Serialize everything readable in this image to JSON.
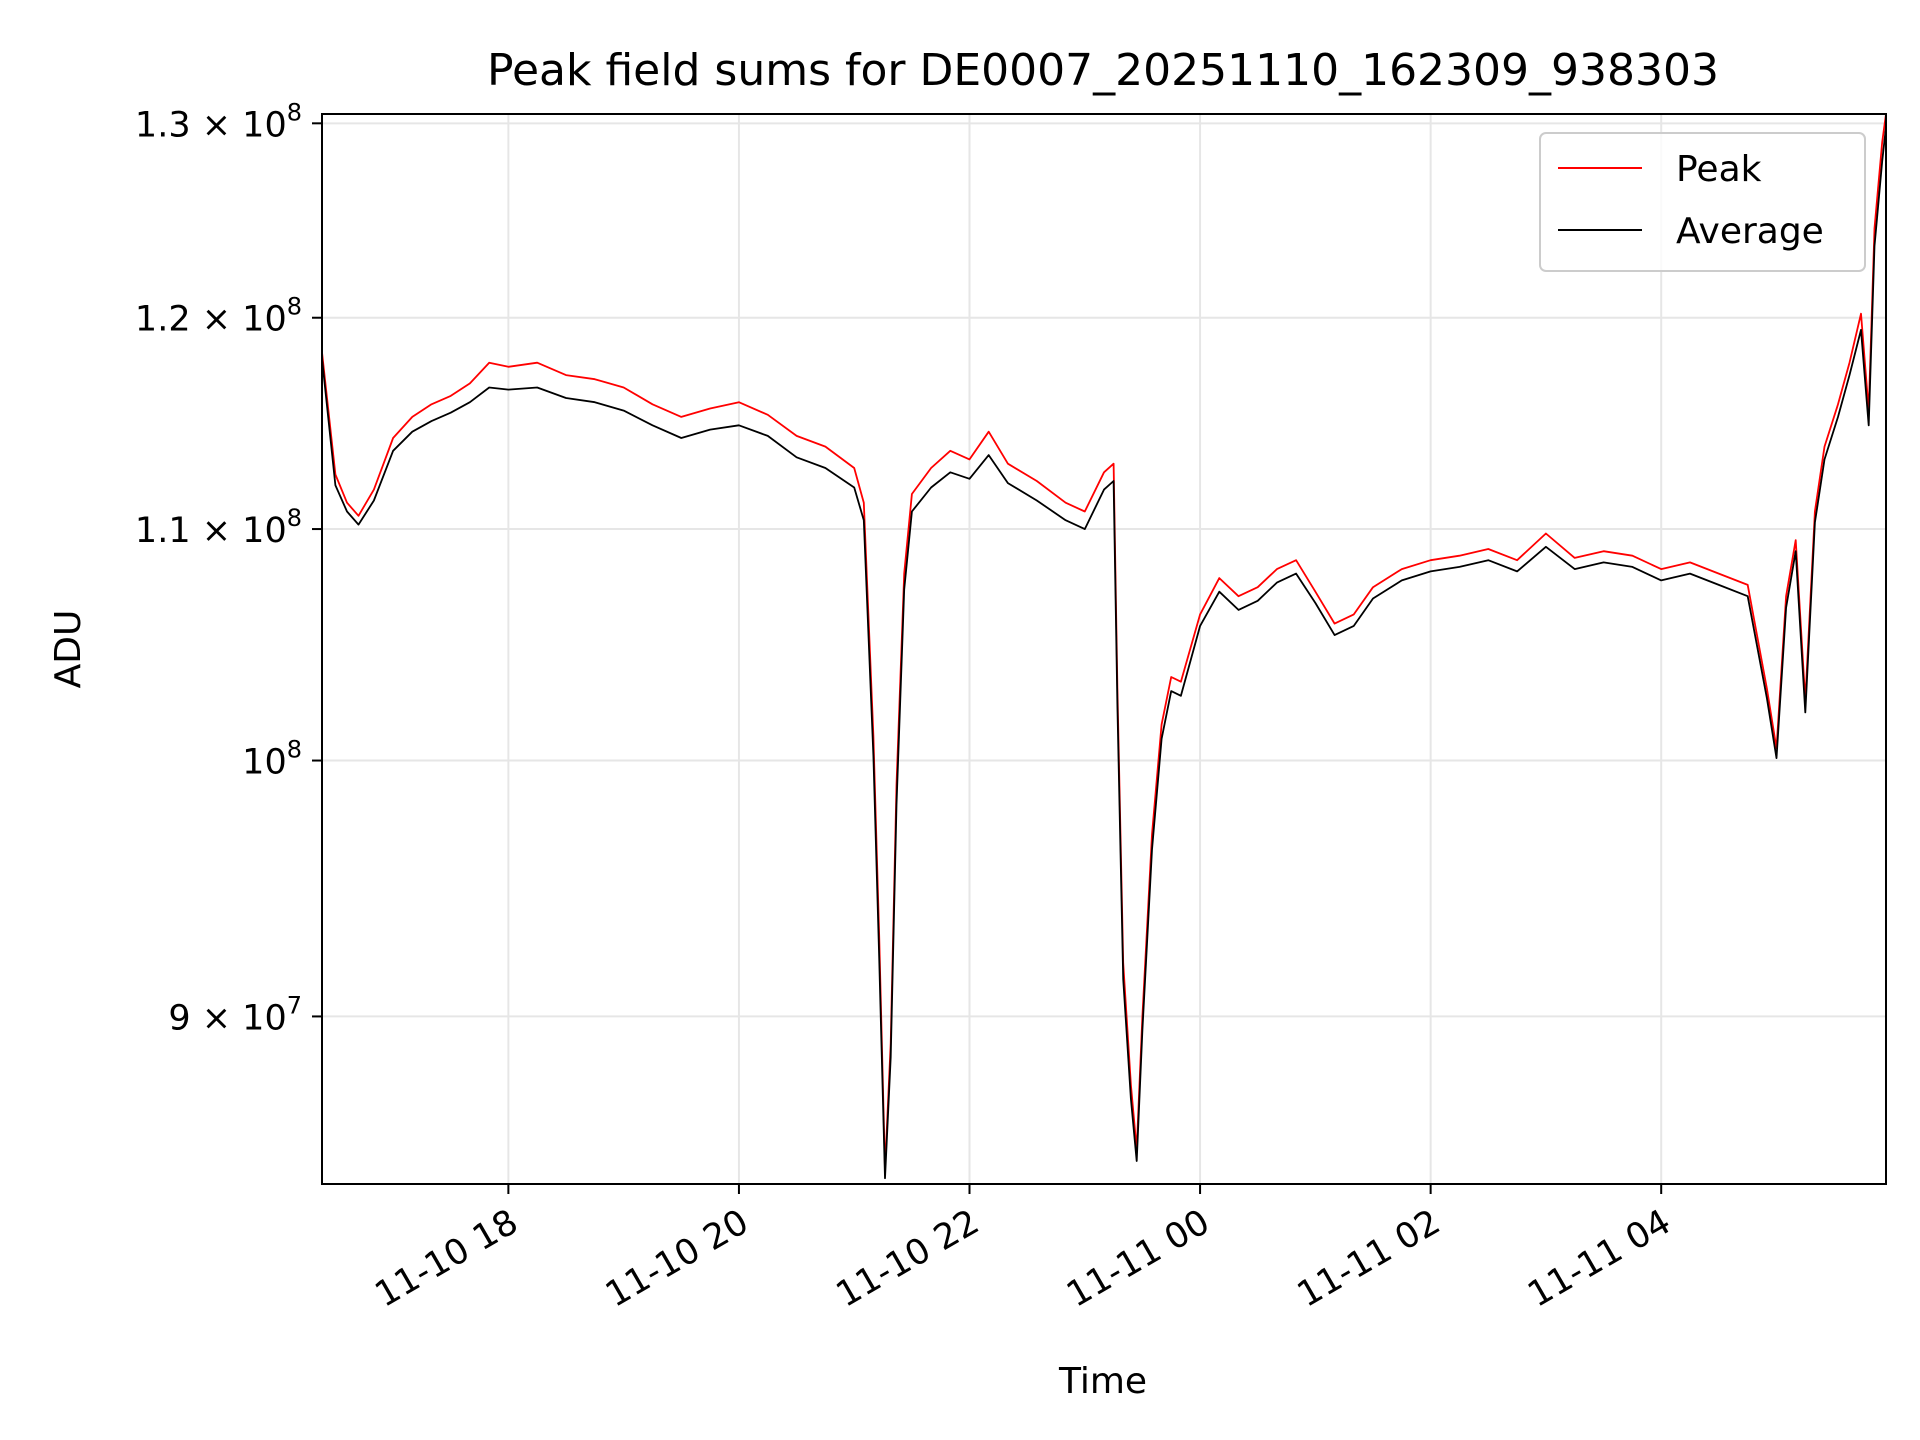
{
  "chart_data": {
    "type": "line",
    "title": "Peak field sums for DE0007_20251110_162309_938303",
    "xlabel": "Time",
    "ylabel": "ADU",
    "y_scale": "log",
    "grid": true,
    "legend_position": "top-right",
    "xlim": [
      "2025-11-10 16:23",
      "2025-11-11 05:57"
    ],
    "ylim": [
      84000000,
      130500000
    ],
    "x_ticks": [
      {
        "value": "2025-11-10 18:00",
        "label": "11-10 18"
      },
      {
        "value": "2025-11-10 20:00",
        "label": "11-10 20"
      },
      {
        "value": "2025-11-10 22:00",
        "label": "11-10 22"
      },
      {
        "value": "2025-11-11 00:00",
        "label": "11-11 00"
      },
      {
        "value": "2025-11-11 02:00",
        "label": "11-11 02"
      },
      {
        "value": "2025-11-11 04:00",
        "label": "11-11 04"
      }
    ],
    "y_ticks": [
      {
        "value": 90000000,
        "mantissa": "9",
        "base": "10",
        "exp": "7"
      },
      {
        "value": 100000000,
        "mantissa": "",
        "base": "10",
        "exp": "8"
      },
      {
        "value": 110000000,
        "mantissa": "1.1",
        "base": "10",
        "exp": "8"
      },
      {
        "value": 120000000,
        "mantissa": "1.2",
        "base": "10",
        "exp": "8"
      },
      {
        "value": 130000000,
        "mantissa": "1.3",
        "base": "10",
        "exp": "8"
      }
    ],
    "series": [
      {
        "name": "Peak",
        "color": "#ff0000",
        "points": [
          [
            "2025-11-10 16:23",
            118300000
          ],
          [
            "2025-11-10 16:30",
            112500000
          ],
          [
            "2025-11-10 16:36",
            111200000
          ],
          [
            "2025-11-10 16:42",
            110600000
          ],
          [
            "2025-11-10 16:50",
            111800000
          ],
          [
            "2025-11-10 17:00",
            114200000
          ],
          [
            "2025-11-10 17:10",
            115200000
          ],
          [
            "2025-11-10 17:20",
            115800000
          ],
          [
            "2025-11-10 17:30",
            116200000
          ],
          [
            "2025-11-10 17:40",
            116800000
          ],
          [
            "2025-11-10 17:50",
            117800000
          ],
          [
            "2025-11-10 18:00",
            117600000
          ],
          [
            "2025-11-10 18:15",
            117800000
          ],
          [
            "2025-11-10 18:30",
            117200000
          ],
          [
            "2025-11-10 18:45",
            117000000
          ],
          [
            "2025-11-10 19:00",
            116600000
          ],
          [
            "2025-11-10 19:15",
            115800000
          ],
          [
            "2025-11-10 19:30",
            115200000
          ],
          [
            "2025-11-10 19:45",
            115600000
          ],
          [
            "2025-11-10 20:00",
            115900000
          ],
          [
            "2025-11-10 20:15",
            115300000
          ],
          [
            "2025-11-10 20:30",
            114300000
          ],
          [
            "2025-11-10 20:45",
            113800000
          ],
          [
            "2025-11-10 21:00",
            112800000
          ],
          [
            "2025-11-10 21:05",
            111200000
          ],
          [
            "2025-11-10 21:10",
            101000000
          ],
          [
            "2025-11-10 21:13",
            93000000
          ],
          [
            "2025-11-10 21:16",
            84500000
          ],
          [
            "2025-11-10 21:19",
            89000000
          ],
          [
            "2025-11-10 21:22",
            99000000
          ],
          [
            "2025-11-10 21:26",
            108000000
          ],
          [
            "2025-11-10 21:30",
            111600000
          ],
          [
            "2025-11-10 21:40",
            112800000
          ],
          [
            "2025-11-10 21:50",
            113600000
          ],
          [
            "2025-11-10 22:00",
            113200000
          ],
          [
            "2025-11-10 22:10",
            114500000
          ],
          [
            "2025-11-10 22:20",
            113000000
          ],
          [
            "2025-11-10 22:35",
            112200000
          ],
          [
            "2025-11-10 22:50",
            111200000
          ],
          [
            "2025-11-10 23:00",
            110800000
          ],
          [
            "2025-11-10 23:10",
            112600000
          ],
          [
            "2025-11-10 23:15",
            113000000
          ],
          [
            "2025-11-10 23:17",
            103000000
          ],
          [
            "2025-11-10 23:20",
            92000000
          ],
          [
            "2025-11-10 23:24",
            87500000
          ],
          [
            "2025-11-10 23:27",
            85200000
          ],
          [
            "2025-11-10 23:30",
            90000000
          ],
          [
            "2025-11-10 23:35",
            97000000
          ],
          [
            "2025-11-10 23:40",
            101500000
          ],
          [
            "2025-11-10 23:45",
            103500000
          ],
          [
            "2025-11-10 23:50",
            103300000
          ],
          [
            "2025-11-11 00:00",
            106200000
          ],
          [
            "2025-11-11 00:10",
            107800000
          ],
          [
            "2025-11-11 00:20",
            107000000
          ],
          [
            "2025-11-11 00:30",
            107400000
          ],
          [
            "2025-11-11 00:40",
            108200000
          ],
          [
            "2025-11-11 00:50",
            108600000
          ],
          [
            "2025-11-11 01:00",
            107200000
          ],
          [
            "2025-11-11 01:10",
            105800000
          ],
          [
            "2025-11-11 01:20",
            106200000
          ],
          [
            "2025-11-11 01:30",
            107400000
          ],
          [
            "2025-11-11 01:45",
            108200000
          ],
          [
            "2025-11-11 02:00",
            108600000
          ],
          [
            "2025-11-11 02:15",
            108800000
          ],
          [
            "2025-11-11 02:30",
            109100000
          ],
          [
            "2025-11-11 02:45",
            108600000
          ],
          [
            "2025-11-11 03:00",
            109800000
          ],
          [
            "2025-11-11 03:15",
            108700000
          ],
          [
            "2025-11-11 03:30",
            109000000
          ],
          [
            "2025-11-11 03:45",
            108800000
          ],
          [
            "2025-11-11 04:00",
            108200000
          ],
          [
            "2025-11-11 04:15",
            108500000
          ],
          [
            "2025-11-11 04:30",
            108000000
          ],
          [
            "2025-11-11 04:45",
            107500000
          ],
          [
            "2025-11-11 04:55",
            103000000
          ],
          [
            "2025-11-11 05:00",
            100500000
          ],
          [
            "2025-11-11 05:05",
            107000000
          ],
          [
            "2025-11-11 05:10",
            109500000
          ],
          [
            "2025-11-11 05:15",
            102500000
          ],
          [
            "2025-11-11 05:20",
            110800000
          ],
          [
            "2025-11-11 05:25",
            113800000
          ],
          [
            "2025-11-11 05:32",
            115800000
          ],
          [
            "2025-11-11 05:38",
            117800000
          ],
          [
            "2025-11-11 05:44",
            120200000
          ],
          [
            "2025-11-11 05:48",
            115500000
          ],
          [
            "2025-11-11 05:51",
            124500000
          ],
          [
            "2025-11-11 05:55",
            129000000
          ],
          [
            "2025-11-11 05:57",
            130500000
          ]
        ]
      },
      {
        "name": "Average",
        "color": "#000000",
        "points": [
          [
            "2025-11-10 16:23",
            118000000
          ],
          [
            "2025-11-10 16:30",
            112000000
          ],
          [
            "2025-11-10 16:36",
            110800000
          ],
          [
            "2025-11-10 16:42",
            110200000
          ],
          [
            "2025-11-10 16:50",
            111300000
          ],
          [
            "2025-11-10 17:00",
            113600000
          ],
          [
            "2025-11-10 17:10",
            114500000
          ],
          [
            "2025-11-10 17:20",
            115000000
          ],
          [
            "2025-11-10 17:30",
            115400000
          ],
          [
            "2025-11-10 17:40",
            115900000
          ],
          [
            "2025-11-10 17:50",
            116600000
          ],
          [
            "2025-11-10 18:00",
            116500000
          ],
          [
            "2025-11-10 18:15",
            116600000
          ],
          [
            "2025-11-10 18:30",
            116100000
          ],
          [
            "2025-11-10 18:45",
            115900000
          ],
          [
            "2025-11-10 19:00",
            115500000
          ],
          [
            "2025-11-10 19:15",
            114800000
          ],
          [
            "2025-11-10 19:30",
            114200000
          ],
          [
            "2025-11-10 19:45",
            114600000
          ],
          [
            "2025-11-10 20:00",
            114800000
          ],
          [
            "2025-11-10 20:15",
            114300000
          ],
          [
            "2025-11-10 20:30",
            113300000
          ],
          [
            "2025-11-10 20:45",
            112800000
          ],
          [
            "2025-11-10 21:00",
            111900000
          ],
          [
            "2025-11-10 21:05",
            110400000
          ],
          [
            "2025-11-10 21:10",
            100200000
          ],
          [
            "2025-11-10 21:13",
            92200000
          ],
          [
            "2025-11-10 21:16",
            84200000
          ],
          [
            "2025-11-10 21:19",
            88500000
          ],
          [
            "2025-11-10 21:22",
            98200000
          ],
          [
            "2025-11-10 21:26",
            107300000
          ],
          [
            "2025-11-10 21:30",
            110800000
          ],
          [
            "2025-11-10 21:40",
            111900000
          ],
          [
            "2025-11-10 21:50",
            112600000
          ],
          [
            "2025-11-10 22:00",
            112300000
          ],
          [
            "2025-11-10 22:10",
            113400000
          ],
          [
            "2025-11-10 22:20",
            112100000
          ],
          [
            "2025-11-10 22:35",
            111300000
          ],
          [
            "2025-11-10 22:50",
            110400000
          ],
          [
            "2025-11-10 23:00",
            110000000
          ],
          [
            "2025-11-10 23:10",
            111800000
          ],
          [
            "2025-11-10 23:15",
            112200000
          ],
          [
            "2025-11-10 23:17",
            102300000
          ],
          [
            "2025-11-10 23:20",
            91400000
          ],
          [
            "2025-11-10 23:24",
            87000000
          ],
          [
            "2025-11-10 23:27",
            84800000
          ],
          [
            "2025-11-10 23:30",
            89500000
          ],
          [
            "2025-11-10 23:35",
            96400000
          ],
          [
            "2025-11-10 23:40",
            100900000
          ],
          [
            "2025-11-10 23:45",
            102900000
          ],
          [
            "2025-11-10 23:50",
            102700000
          ],
          [
            "2025-11-11 00:00",
            105700000
          ],
          [
            "2025-11-11 00:10",
            107200000
          ],
          [
            "2025-11-11 00:20",
            106400000
          ],
          [
            "2025-11-11 00:30",
            106800000
          ],
          [
            "2025-11-11 00:40",
            107600000
          ],
          [
            "2025-11-11 00:50",
            108000000
          ],
          [
            "2025-11-11 01:00",
            106700000
          ],
          [
            "2025-11-11 01:10",
            105300000
          ],
          [
            "2025-11-11 01:20",
            105700000
          ],
          [
            "2025-11-11 01:30",
            106900000
          ],
          [
            "2025-11-11 01:45",
            107700000
          ],
          [
            "2025-11-11 02:00",
            108100000
          ],
          [
            "2025-11-11 02:15",
            108300000
          ],
          [
            "2025-11-11 02:30",
            108600000
          ],
          [
            "2025-11-11 02:45",
            108100000
          ],
          [
            "2025-11-11 03:00",
            109200000
          ],
          [
            "2025-11-11 03:15",
            108200000
          ],
          [
            "2025-11-11 03:30",
            108500000
          ],
          [
            "2025-11-11 03:45",
            108300000
          ],
          [
            "2025-11-11 04:00",
            107700000
          ],
          [
            "2025-11-11 04:15",
            108000000
          ],
          [
            "2025-11-11 04:30",
            107500000
          ],
          [
            "2025-11-11 04:45",
            107000000
          ],
          [
            "2025-11-11 04:55",
            102600000
          ],
          [
            "2025-11-11 05:00",
            100100000
          ],
          [
            "2025-11-11 05:05",
            106500000
          ],
          [
            "2025-11-11 05:10",
            109000000
          ],
          [
            "2025-11-11 05:15",
            102000000
          ],
          [
            "2025-11-11 05:20",
            110300000
          ],
          [
            "2025-11-11 05:25",
            113200000
          ],
          [
            "2025-11-11 05:32",
            115200000
          ],
          [
            "2025-11-11 05:38",
            117200000
          ],
          [
            "2025-11-11 05:44",
            119400000
          ],
          [
            "2025-11-11 05:48",
            114800000
          ],
          [
            "2025-11-11 05:51",
            123600000
          ],
          [
            "2025-11-11 05:55",
            128000000
          ],
          [
            "2025-11-11 05:57",
            129800000
          ]
        ]
      }
    ]
  }
}
